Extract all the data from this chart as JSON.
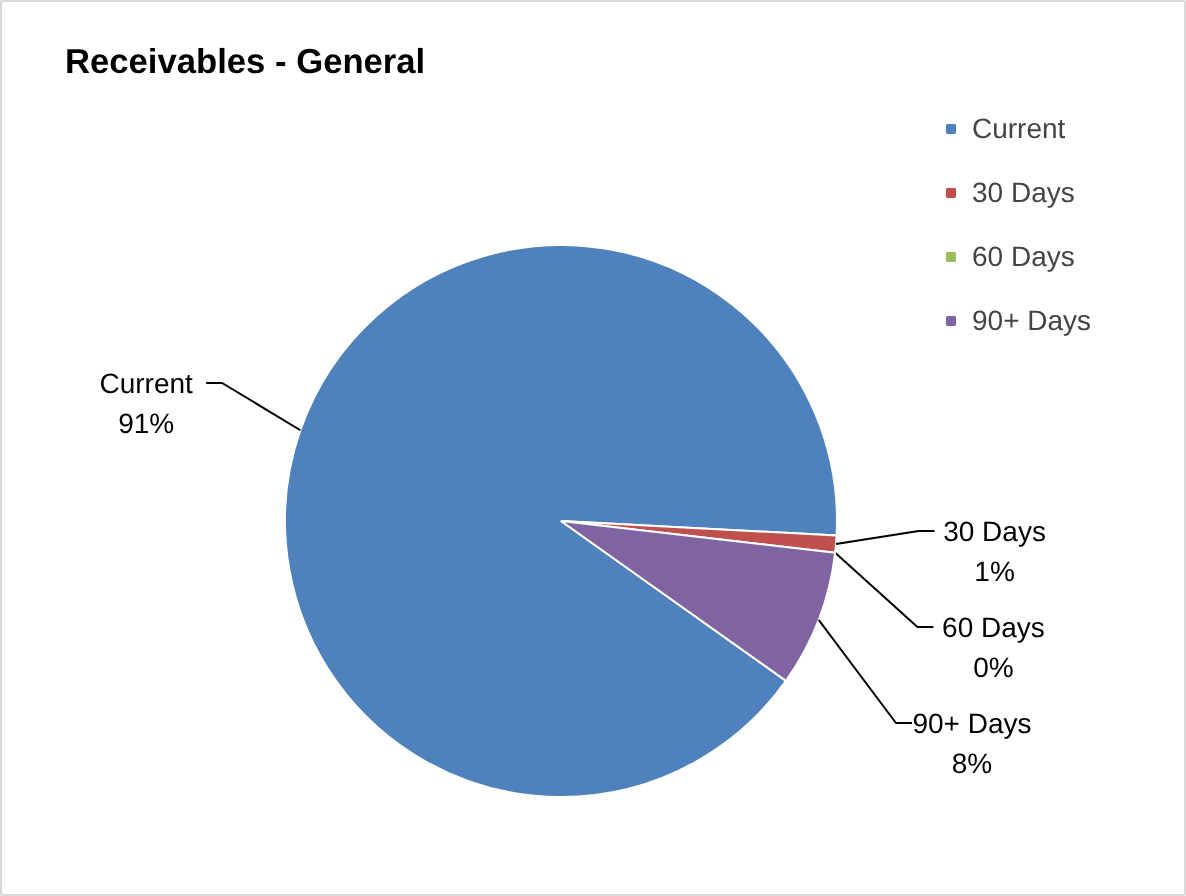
{
  "chart_data": {
    "type": "pie",
    "title": "Receivables - General",
    "categories": [
      "Current",
      "30 Days",
      "60 Days",
      "90+ Days"
    ],
    "values": [
      91,
      1,
      0,
      8
    ],
    "colors": [
      "#4f81bd",
      "#c0504d",
      "#9bbb59",
      "#8064a2"
    ],
    "value_labels": [
      "91%",
      "1%",
      "0%",
      "8%"
    ],
    "legend": "right"
  }
}
